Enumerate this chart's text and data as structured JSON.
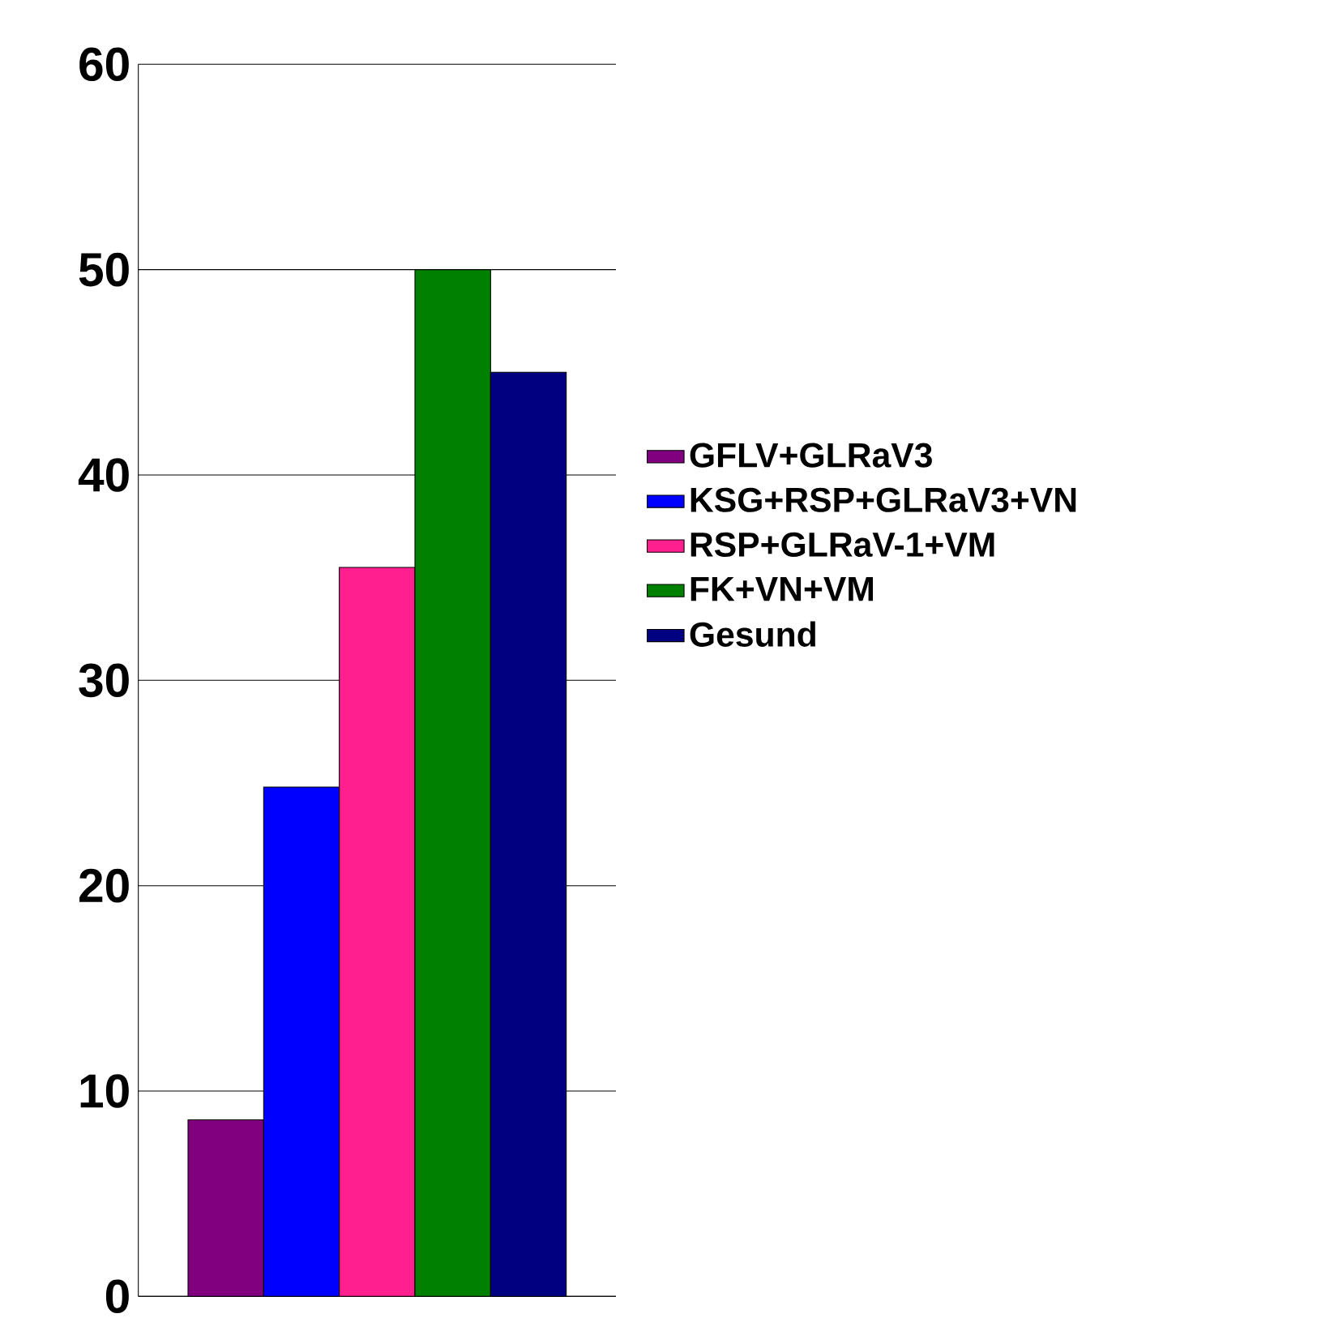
{
  "chart_data": {
    "type": "bar",
    "categories": [
      null
    ],
    "series": [
      {
        "name": "GFLV+GLRaV3",
        "color": "#800080",
        "values": [
          8.6
        ]
      },
      {
        "name": "KSG+RSP+GLRaV3+VN",
        "color": "#0000ff",
        "values": [
          24.8
        ]
      },
      {
        "name": "RSP+GLRaV-1+VM",
        "color": "#ff1f8f",
        "values": [
          35.5
        ]
      },
      {
        "name": "FK+VN+VM",
        "color": "#008000",
        "values": [
          50
        ]
      },
      {
        "name": "Gesund",
        "color": "#000080",
        "values": [
          45
        ]
      }
    ],
    "ylim": [
      0,
      60
    ],
    "yticks": [
      0,
      10,
      20,
      30,
      40,
      50,
      60
    ],
    "grid": "y",
    "legend": "right",
    "tick_labels": "y"
  }
}
